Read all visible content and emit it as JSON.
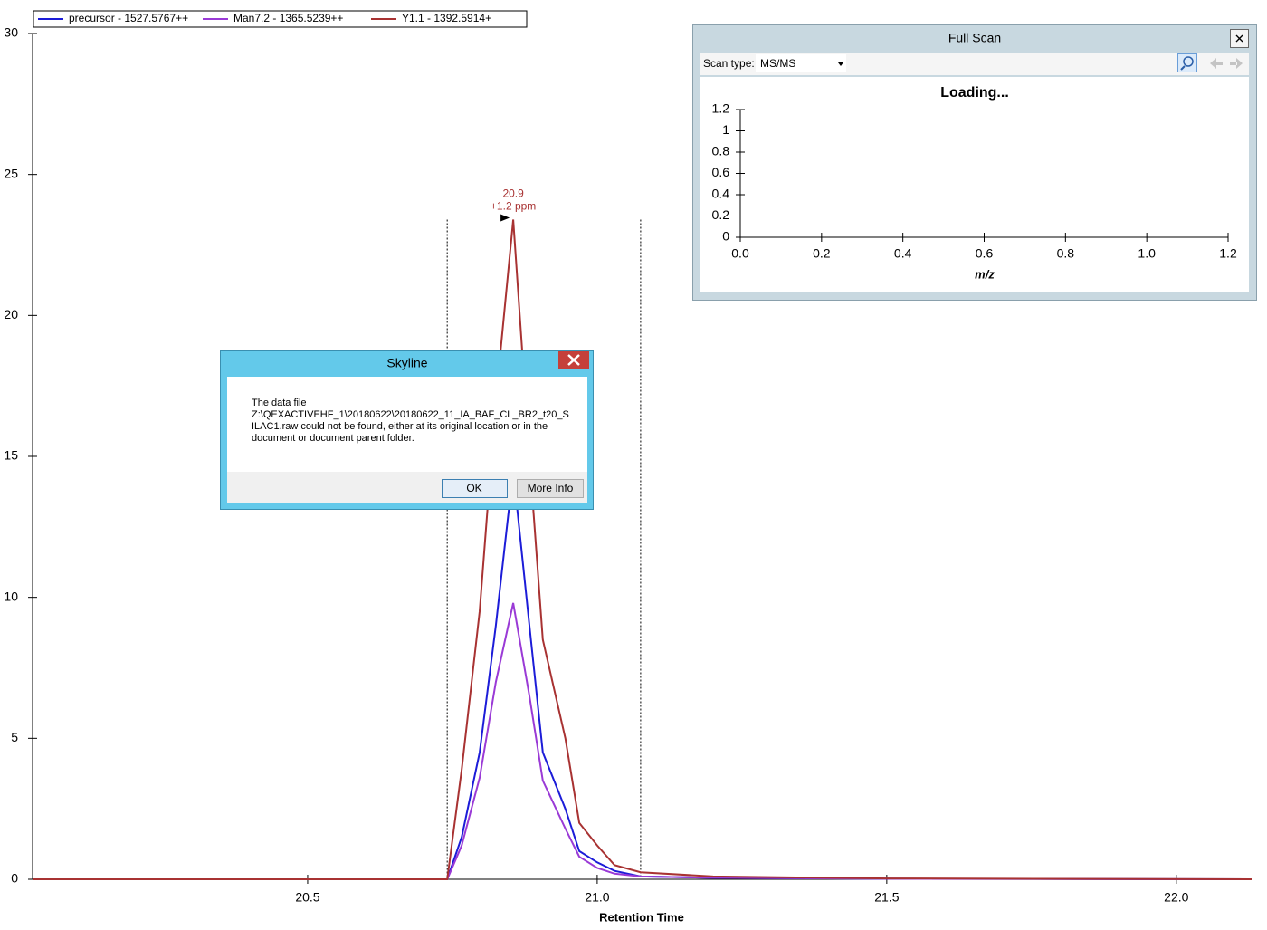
{
  "chart_data": {
    "type": "line",
    "x_label": "Retention Time",
    "x": [
      20.025,
      20.741,
      20.766,
      20.797,
      20.825,
      20.855,
      20.883,
      20.906,
      20.945,
      20.969,
      21.0,
      21.03,
      21.075,
      21.2,
      21.5,
      22.13
    ],
    "series": [
      {
        "name": "precursor - 1527.5767++",
        "color": "#1c1cd8",
        "values": [
          0,
          0,
          1.5,
          4.5,
          9,
          14.5,
          9,
          4.5,
          2.5,
          1.0,
          0.6,
          0.3,
          0.1,
          0.05,
          0.02,
          0
        ]
      },
      {
        "name": "Man7.2 - 1365.5239++",
        "color": "#9a3ad6",
        "values": [
          0,
          0,
          1.2,
          3.6,
          7,
          9.8,
          6.5,
          3.5,
          1.8,
          0.8,
          0.4,
          0.2,
          0.1,
          0.05,
          0.02,
          0
        ]
      },
      {
        "name": "Y1.1 - 1392.5914+",
        "color": "#a83232",
        "values": [
          0,
          0,
          3.9,
          9.5,
          17,
          23.4,
          15,
          8.5,
          5,
          2.0,
          1.2,
          0.5,
          0.25,
          0.1,
          0.03,
          0
        ]
      }
    ],
    "peak_boundaries": [
      20.741,
      21.075
    ],
    "annotation": {
      "x": 20.855,
      "y": 23.4,
      "lines": [
        "20.9",
        "+1.2 ppm"
      ],
      "color": "#a83232"
    },
    "xlim": [
      20.025,
      22.13
    ],
    "xticks": [
      20.5,
      {
        "value": 21,
        "label": "21.0"
      },
      21.5,
      {
        "value": 22,
        "label": "22.0"
      }
    ],
    "ylim": [
      0,
      30
    ],
    "yticks": [
      0,
      5,
      10,
      15,
      20,
      25,
      30
    ],
    "legend": "top-left"
  },
  "full_scan": {
    "title": "Full Scan",
    "scan_type_label": "Scan type:",
    "scan_type": "MS/MS",
    "status": "Loading...",
    "x_label": "m/z",
    "xlim": [
      0,
      1.2
    ],
    "xticks": [
      {
        "value": 0,
        "label": "0.0"
      },
      0.2,
      0.4,
      0.6,
      0.8,
      {
        "value": 1,
        "label": "1.0"
      },
      1.2
    ],
    "ylim": [
      0,
      1.2
    ],
    "yticks": [
      0,
      0.2,
      0.4,
      0.6,
      0.8,
      1,
      1.2
    ]
  },
  "dialog": {
    "title": "Skyline",
    "message": [
      "The data file",
      "Z:\\QEXACTIVEHF_1\\20180622\\20180622_11_IA_BAF_CL_BR2_t20_S",
      "ILAC1.raw could not be found, either at its original location or in the",
      "document or document parent folder."
    ],
    "buttons": [
      "OK",
      "More Info"
    ]
  }
}
